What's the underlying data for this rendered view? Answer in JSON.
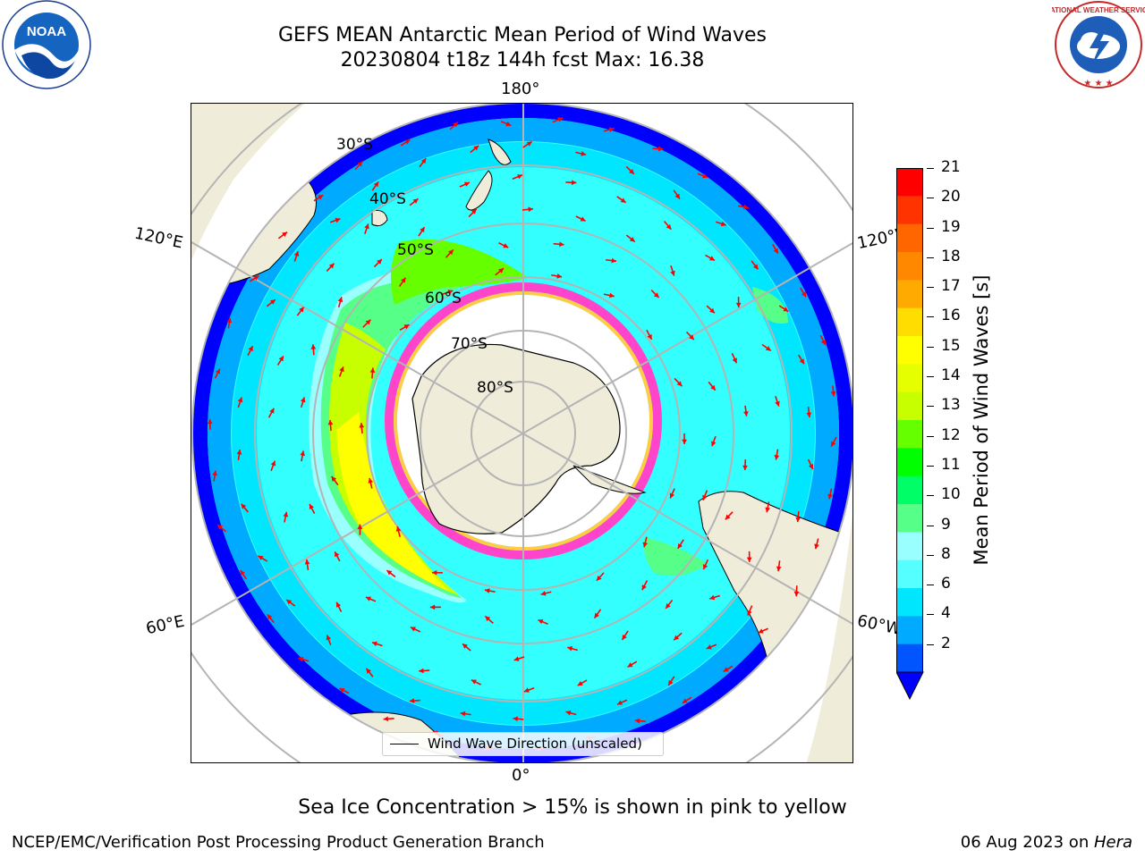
{
  "header": {
    "title_line1": "GEFS MEAN Antarctic Mean Period of Wind Waves",
    "title_line2": "20230804 t18z 144h fcst   Max: 16.38"
  },
  "logos": {
    "left": "NOAA",
    "right": "NATIONAL WEATHER SERVICE"
  },
  "map": {
    "projection": "south-polar-stereographic",
    "longitude_labels": {
      "top": "180°",
      "bottom": "0°",
      "left_upper": "120°E",
      "left_lower": "60°E",
      "right_upper": "120°W",
      "right_lower": "60°W"
    },
    "latitude_labels": [
      "30°S",
      "40°S",
      "50°S",
      "60°S",
      "70°S",
      "80°S"
    ],
    "legend_entry": "Wind Wave Direction (unscaled)",
    "arrow_color": "#ff0000",
    "land_color": "#efedda",
    "gridline_color": "#b4b4b4"
  },
  "colorbar": {
    "label": "Mean Period of Wind Waves [s]",
    "ticks": [
      "21",
      "20",
      "19",
      "18",
      "17",
      "16",
      "15",
      "14",
      "13",
      "12",
      "11",
      "10",
      "9",
      "8",
      "6",
      "4",
      "2"
    ],
    "colors_top_to_bottom": [
      "#ff0000",
      "#ff3300",
      "#ff6600",
      "#ff8800",
      "#ffaa00",
      "#ffdd00",
      "#ffff00",
      "#e6ff00",
      "#c8ff00",
      "#66ff00",
      "#00ff00",
      "#00ff66",
      "#55ff88",
      "#99ffff",
      "#55ffff",
      "#00e6ff",
      "#00aaff",
      "#0055ff"
    ],
    "extend_color": "#0000ff"
  },
  "footer": {
    "note": "Sea Ice Concentration > 15% is shown in pink to yellow",
    "left": "NCEP/EMC/Verification Post Processing Product Generation Branch",
    "right_date": "06 Aug 2023 on ",
    "right_machine": "Hera"
  }
}
